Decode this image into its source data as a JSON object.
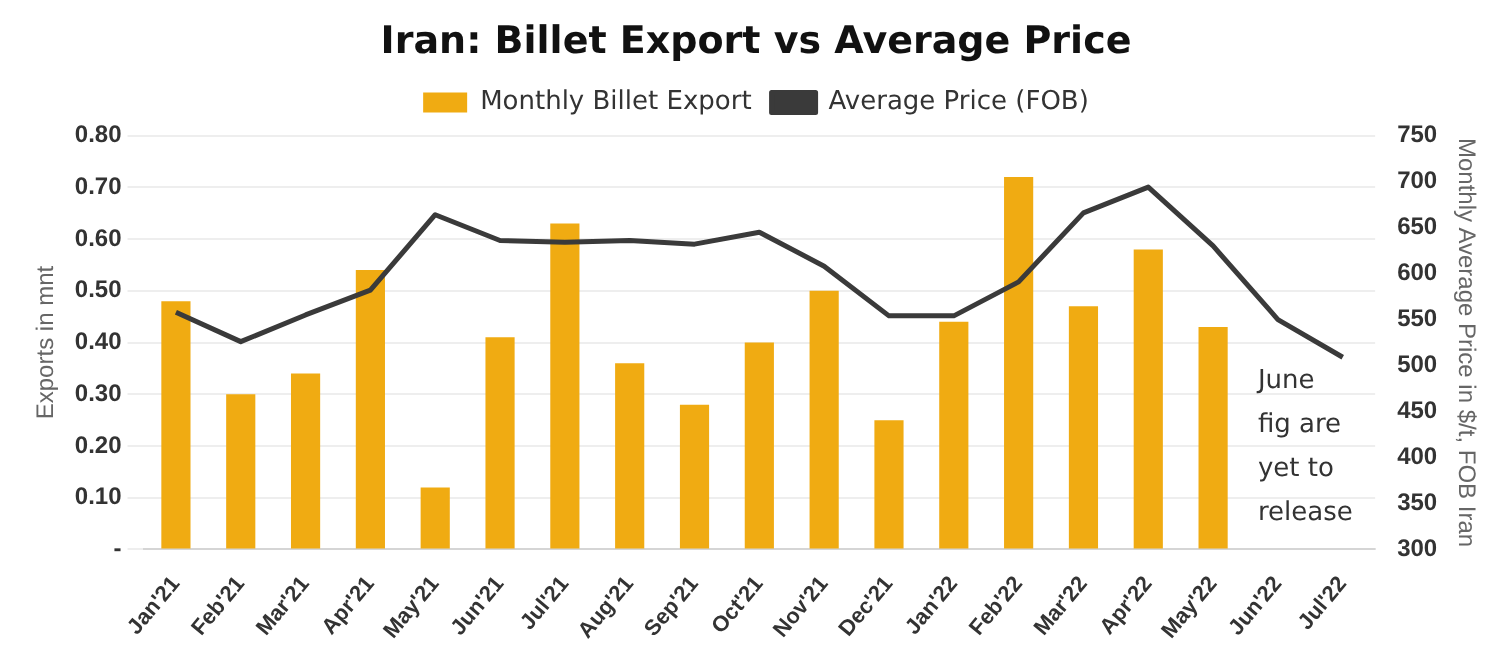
{
  "chart_data": {
    "type": "bar",
    "title": "Iran: Billet Export vs Average Price",
    "ylabel": "Exports in mnt",
    "y2label": "Monthly Average Price in $/t, FOB Iran",
    "categories": [
      "Jan'21",
      "Feb'21",
      "Mar'21",
      "Apr'21",
      "May'21",
      "Jun'21",
      "Jul'21",
      "Aug'21",
      "Sep'21",
      "Oct'21",
      "Nov'21",
      "Dec'21",
      "Jan'22",
      "Feb'22",
      "Mar'22",
      "Apr'22",
      "May'22",
      "Jun'22",
      "Jul'22"
    ],
    "series": [
      {
        "name": "Monthly Billet Export",
        "color": "#f0ab12",
        "values": [
          0.48,
          0.3,
          0.34,
          0.54,
          0.12,
          0.41,
          0.63,
          0.36,
          0.28,
          0.4,
          0.5,
          0.25,
          0.44,
          0.72,
          0.47,
          0.58,
          0.43,
          null,
          null
        ]
      },
      {
        "name": "Average Price (FOB)",
        "type": "line",
        "axis": "y2",
        "color": "#3a3a3a",
        "values": [
          558,
          526,
          555,
          582,
          664,
          636,
          634,
          636,
          632,
          645,
          608,
          554,
          554,
          591,
          666,
          694,
          630,
          550,
          509
        ]
      }
    ],
    "ylim": [
      0,
      0.8
    ],
    "yticks": [
      {
        "value": 0,
        "label": "-"
      },
      {
        "value": 0.1,
        "label": "0.10"
      },
      {
        "value": 0.2,
        "label": "0.20"
      },
      {
        "value": 0.3,
        "label": "0.30"
      },
      {
        "value": 0.4,
        "label": "0.40"
      },
      {
        "value": 0.5,
        "label": "0.50"
      },
      {
        "value": 0.6,
        "label": "0.60"
      },
      {
        "value": 0.7,
        "label": "0.70"
      },
      {
        "value": 0.8,
        "label": "0.80"
      }
    ],
    "y2lim": [
      300,
      750
    ],
    "y2ticks": [
      300,
      350,
      400,
      450,
      500,
      550,
      600,
      650,
      700,
      750
    ],
    "grid": "y",
    "legend": "top",
    "marker": "none",
    "line_style": "solid",
    "annotations": [
      "June fig are yet to release"
    ]
  }
}
